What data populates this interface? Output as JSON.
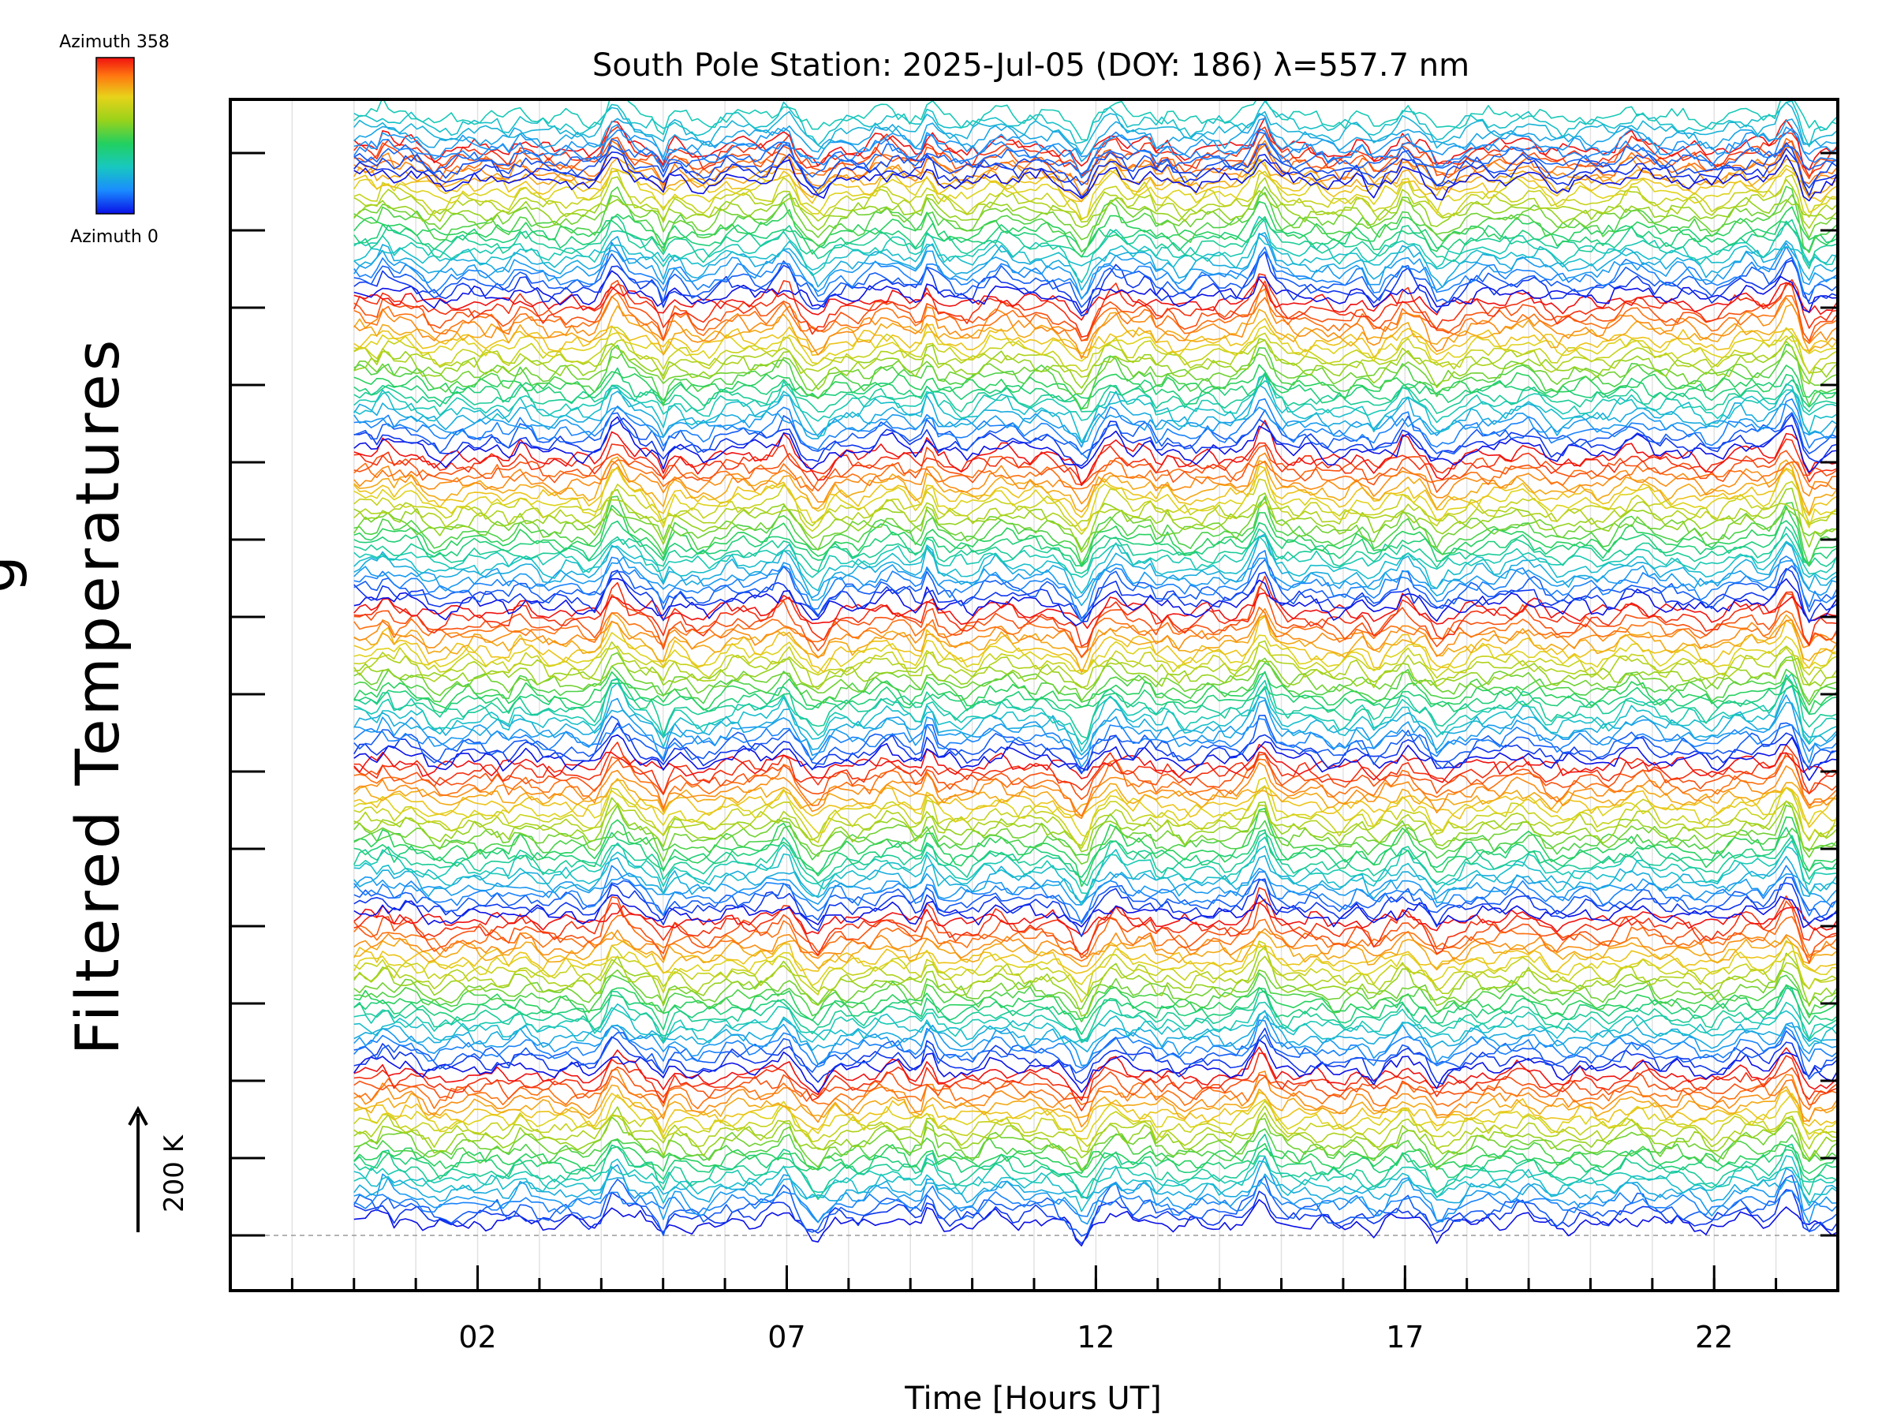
{
  "chart_data": {
    "type": "line",
    "title": "South Pole Station: 2025-Jul-05 (DOY: 186) λ=557.7 nm",
    "xlabel": "Time [Hours UT]",
    "ylabel": "Filtered Temperatures",
    "ylabel_cut": "g",
    "xlim": [
      -2,
      24
    ],
    "x_ticks": [
      2,
      7,
      12,
      17,
      22
    ],
    "x_tick_labels": [
      "02",
      "07",
      "12",
      "17",
      "22"
    ],
    "data_start_hour": 0,
    "data_end_hour": 24,
    "scale_bar": {
      "label": "200 K",
      "value_k": 200
    },
    "colorbar": {
      "top_label": "Azimuth 358",
      "bottom_label": "Azimuth 0",
      "colors": [
        "#0a10e6",
        "#1a8cff",
        "#18c8c0",
        "#22d060",
        "#9ad21a",
        "#e8d21a",
        "#ff7a10",
        "#f01010"
      ]
    },
    "offset_levels": 14,
    "azimuth_bands": 7,
    "curves_per_band": 24,
    "event_hours": [
      0.5,
      2.5,
      4.2,
      5.0,
      7.0,
      7.5,
      9.3,
      11.8,
      12.3,
      13.0,
      14.7,
      16.5,
      17.0,
      17.5,
      23.2,
      23.5
    ]
  }
}
